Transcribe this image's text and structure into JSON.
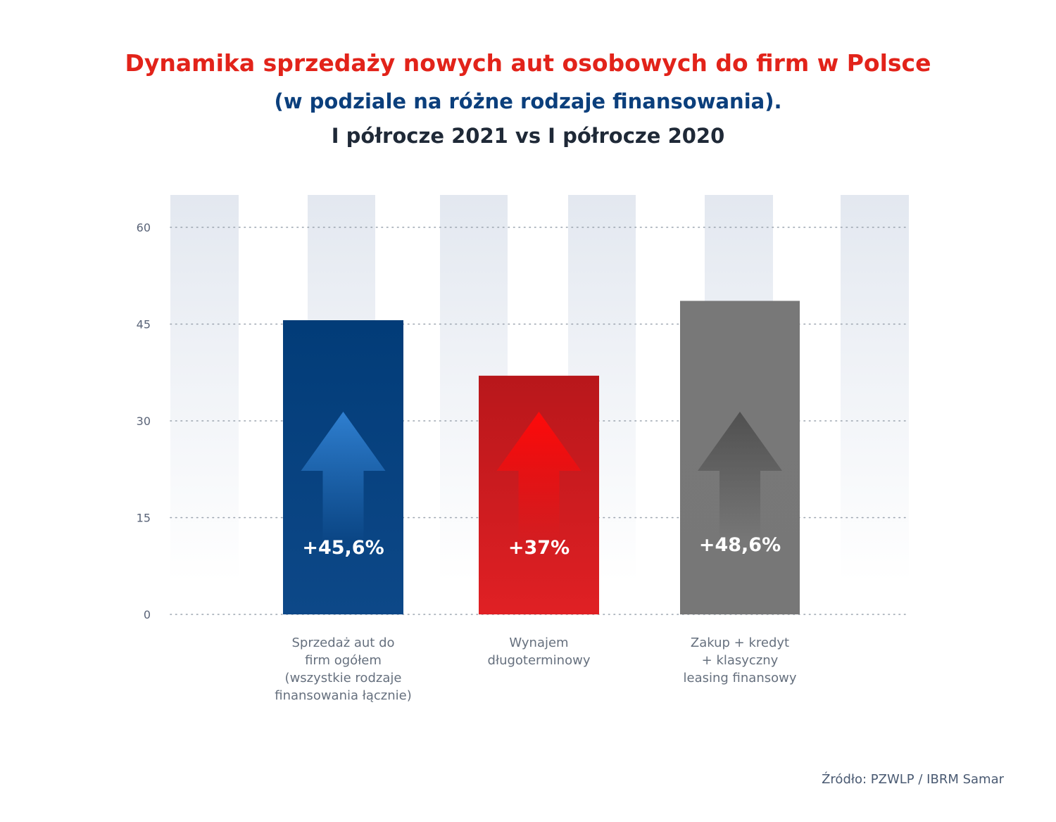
{
  "chart_data": {
    "type": "bar",
    "title": "Dynamika sprzedaży nowych aut osobowych do firm w Polsce",
    "subtitle": "(w podziale na różne rodzaje finansowania).",
    "period": "I półrocze 2021 vs I półrocze 2020",
    "categories": [
      [
        "Sprzedaż aut do",
        "firm ogółem",
        "(wszystkie rodzaje",
        "finansowania łącznie)"
      ],
      [
        "Wynajem",
        "długoterminowy"
      ],
      [
        "Zakup + kredyt",
        "+ klasyczny",
        "leasing finansowy"
      ]
    ],
    "values": [
      45.6,
      37,
      48.6
    ],
    "value_labels": [
      "+45,6%",
      "+37%",
      "+48,6%"
    ],
    "colors": [
      "#0b3f7c",
      "#c0161b",
      "#777777"
    ],
    "yticks": [
      0,
      15,
      30,
      45,
      60
    ],
    "ylim": [
      0,
      60
    ],
    "grid": "dotted horizontal",
    "xlabel": "",
    "ylabel": ""
  },
  "source": "Źródło: PZWLP / IBRM Samar"
}
